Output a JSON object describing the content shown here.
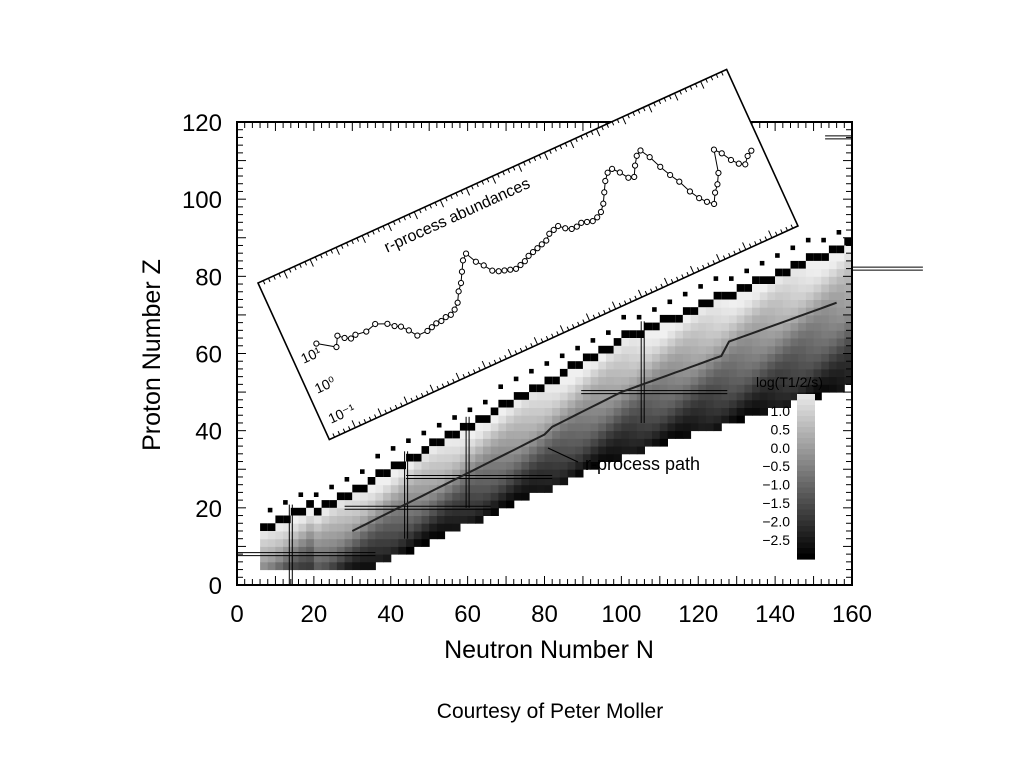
{
  "chart_data": {
    "type": "heatmap",
    "xlabel": "Neutron Number N",
    "ylabel": "Proton Number Z",
    "xlim": [
      0,
      160
    ],
    "ylim": [
      0,
      120
    ],
    "x_ticks": [
      "0",
      "20",
      "40",
      "60",
      "80",
      "100",
      "120",
      "140",
      "160"
    ],
    "y_ticks": [
      "0",
      "20",
      "40",
      "60",
      "80",
      "100",
      "120"
    ],
    "legend_title": "log(T1/2/s)",
    "legend_labels": [
      "1.0",
      "0.5",
      "0.0",
      "−0.5",
      "−1.0",
      "−1.5",
      "−2.0",
      "−2.5"
    ],
    "legend_values": [
      1.0,
      0.5,
      0.0,
      -0.5,
      -1.0,
      -1.5,
      -2.0,
      -2.5
    ],
    "magic_numbers": [
      8,
      20,
      28,
      50,
      82,
      126
    ],
    "annotation_path": "r-process path",
    "inset": {
      "title": "r-process abundances",
      "y_ticks": [
        "10¹",
        "10⁰",
        "10⁻¹"
      ],
      "x_positions": [
        5,
        8,
        9,
        10,
        11,
        12,
        14,
        16,
        18,
        19,
        20,
        21,
        22,
        24,
        25,
        26,
        27,
        28,
        29,
        30,
        31,
        32,
        33,
        34,
        35,
        36,
        37,
        38,
        39,
        40,
        41,
        42,
        43,
        44,
        45,
        46,
        47,
        48,
        49,
        50,
        51,
        52,
        53,
        54,
        55,
        56,
        57,
        58,
        59,
        60,
        61,
        62,
        63,
        64,
        65,
        66,
        67,
        68,
        69,
        70,
        71,
        72,
        73,
        74,
        75,
        76,
        77,
        78,
        79,
        80,
        81,
        82,
        83,
        84,
        85,
        86,
        87,
        88,
        89,
        90
      ],
      "log_abundance": [
        1.25,
        0.9,
        1.2,
        1.05,
        0.95,
        1.0,
        0.95,
        1.05,
        0.9,
        0.75,
        0.65,
        0.45,
        0.2,
        0.2,
        0.25,
        0.3,
        0.3,
        0.35,
        0.35,
        0.45,
        0.6,
        0.9,
        1.1,
        1.4,
        1.7,
        1.85,
        1.5,
        1.3,
        1.05,
        0.95,
        0.9,
        0.85,
        0.8,
        0.85,
        0.9,
        1.0,
        1.05,
        1.1,
        1.15,
        1.2,
        1.35,
        1.4,
        1.45,
        1.3,
        1.2,
        1.2,
        1.25,
        1.2,
        1.15,
        1.2,
        1.3,
        1.5,
        1.8,
        2.1,
        2.3,
        2.35,
        2.15,
        1.9,
        1.85,
        2.15,
        2.4,
        2.5,
        2.2,
        1.8,
        1.45,
        1.15,
        0.75,
        0.45,
        0.25,
        0.1,
        0.4,
        0.6,
        0.9,
        1.6,
        1.4,
        1.1,
        0.9,
        0.8,
        1.0,
        1.1
      ]
    }
  },
  "caption": "Courtesy of Peter Moller"
}
